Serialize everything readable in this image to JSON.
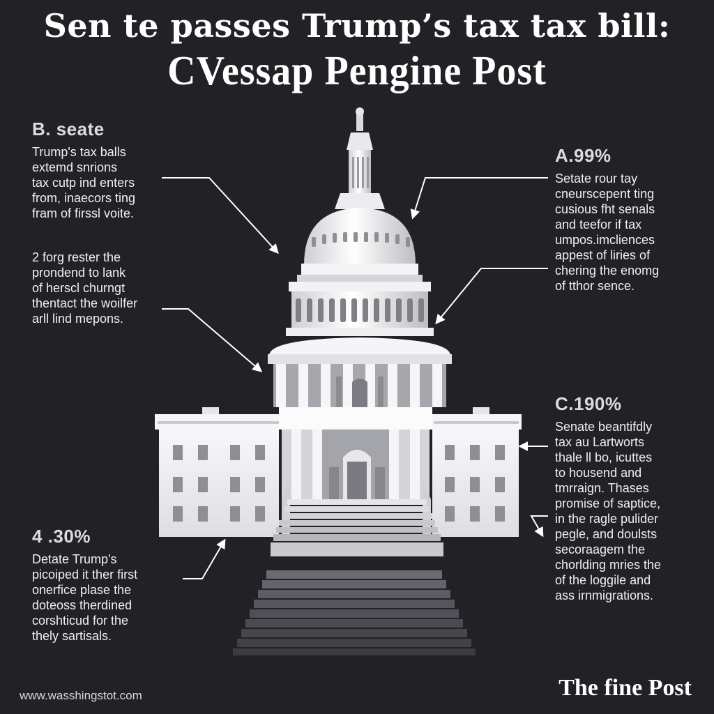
{
  "header": {
    "headline": "Sen te passes Trump’s tax tax bill:",
    "masthead": "CVessap Pengine Post"
  },
  "callouts": {
    "b": {
      "stat": "B. seate",
      "text": "Trump's tax balls\nextemd snrions\ntax cutp ind  enters\nfrom, inaecors ting\nfram of firssl voite."
    },
    "two": {
      "text": "2 forg rester the\nprondend to lank\nof herscl churngt\nthentact the woilfer\narll lind mepons."
    },
    "four": {
      "stat": "4 .30%",
      "text": "Detate Trump's\npicoiped it ther first\nonerfice plase the\ndoteoss therdined\ncorshticud for the\nthely sartisals."
    },
    "a": {
      "stat": "A.99%",
      "text": "Setate rour tay\ncneurscepent ting\ncusious fht senals\nand teefor if tax\numpos.imcliences\nappest of liries of\nchering the enomg\nof tthor sence."
    },
    "c": {
      "stat": "C.190%",
      "text": "Senate beantifdly\ntax au Lartworts\nthale ll bo, icuttes\nto housend and\ntmrraign. Thases\npromise of saptice,\nin the ragle pulider\npegle, and doulsts\nsecoraagem the\nchorlding mries the\nof the loggile and\nass irnmigrations."
    }
  },
  "footer": {
    "url": "www.wasshingstot.com",
    "logo": "The fine Post"
  },
  "colors": {
    "background": "#222226",
    "building": "#f2f2f4",
    "shadow": "#9c9ca2",
    "steps": "#5a5a62"
  }
}
